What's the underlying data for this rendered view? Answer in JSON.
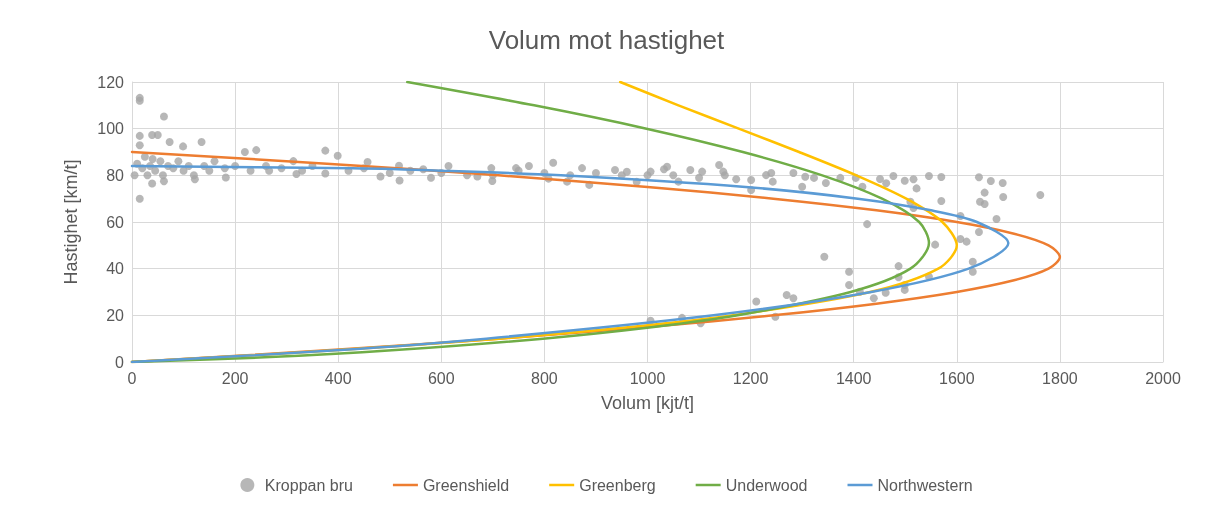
{
  "chart_data": {
    "type": "scatter",
    "title": "Volum mot hastighet",
    "xlabel": "Volum [kjt/t]",
    "ylabel": "Hastighet [km/t]",
    "xlim": [
      0,
      2000
    ],
    "xticks": [
      0,
      200,
      400,
      600,
      800,
      1000,
      1200,
      1400,
      1600,
      1800,
      2000
    ],
    "ylim": [
      0,
      120
    ],
    "yticks": [
      0,
      20,
      40,
      60,
      80,
      100,
      120
    ],
    "grid": true,
    "legend": "bottom",
    "series": [
      {
        "name": "Kroppan bru",
        "marker": "circle",
        "color": "#a5a5a5",
        "x": [
          15,
          15,
          62,
          15,
          15,
          39,
          50,
          73,
          135,
          99,
          15,
          39,
          62,
          122,
          182,
          219,
          241,
          266,
          313,
          375,
          399,
          319,
          375,
          457,
          482,
          519,
          518,
          565,
          580,
          614,
          670,
          699,
          697,
          745,
          770,
          817,
          808,
          844,
          887,
          873,
          937,
          960,
          979,
          1032,
          5,
          10,
          20,
          25,
          30,
          35,
          40,
          45,
          55,
          60,
          70,
          80,
          90,
          100,
          110,
          120,
          140,
          150,
          160,
          180,
          200,
          230,
          260,
          290,
          330,
          350,
          420,
          450,
          500,
          540,
          600,
          650,
          700,
          750,
          800,
          850,
          900,
          950,
          1000,
          1050,
          1100,
          1150,
          1006,
          1038,
          1060,
          1083,
          1106,
          1139,
          1147,
          1172,
          1201,
          1201,
          1230,
          1240,
          1243,
          1283,
          1300,
          1306,
          1323,
          1346,
          1374,
          1404,
          1417,
          1451,
          1463,
          1477,
          1499,
          1516,
          1546,
          1522,
          1516,
          1510,
          1643,
          1666,
          1689,
          1690,
          1654,
          1645,
          1654,
          1677,
          1643,
          1762,
          1570,
          1570,
          1607,
          1607,
          1619,
          1631,
          1631,
          1558,
          1546,
          1487,
          1487,
          1499,
          1499,
          1462,
          1439,
          1426,
          1391,
          1391,
          1412,
          1343,
          1270,
          1283,
          1211,
          1248,
          1103,
          1067,
          1006
        ],
        "values": [
          113.2,
          112,
          105.2,
          70,
          96.9,
          97.3,
          97.3,
          94.3,
          94.3,
          92.4,
          92.9,
          76.5,
          77.5,
          78.3,
          79.1,
          90,
          90.8,
          82,
          86.1,
          90.6,
          88.4,
          80.6,
          80.8,
          85.7,
          79.5,
          77.8,
          84.1,
          82.6,
          79,
          84,
          79.5,
          77.6,
          83.1,
          83.1,
          84,
          85.4,
          78.6,
          77.3,
          75.9,
          83.1,
          82.3,
          81.5,
          77.2,
          82.6,
          80,
          85,
          83,
          88,
          80,
          84,
          87,
          82,
          86,
          80,
          84,
          83,
          86,
          82,
          84,
          80,
          84,
          82,
          86,
          83,
          84,
          82,
          84,
          83,
          82,
          84,
          82,
          83,
          81,
          82,
          81,
          80,
          80,
          82,
          81,
          80,
          81,
          80,
          80,
          80,
          79,
          80,
          81.6,
          83.7,
          77.3,
          82.3,
          81.6,
          84.4,
          81.6,
          78.3,
          78,
          73.7,
          80.1,
          81,
          77.3,
          81,
          75.1,
          79.4,
          78.9,
          76.7,
          78.9,
          78.9,
          75.1,
          78.4,
          76.6,
          79.7,
          77.7,
          78.3,
          79.7,
          74.4,
          66,
          68.7,
          79.2,
          77.6,
          76.7,
          70.7,
          72.6,
          68.7,
          67.7,
          61.3,
          55.7,
          71.6,
          79.3,
          69,
          62.6,
          52.7,
          51.6,
          43,
          38.7,
          50.3,
          36.6,
          41.1,
          36.3,
          30.9,
          33,
          29.7,
          27.3,
          59.1,
          38.7,
          33,
          30.1,
          45.1,
          28.7,
          27.3,
          25.9,
          19.4,
          16.6,
          18.9,
          17.7
        ]
      },
      {
        "name": "Greenshield",
        "type": "line",
        "marker": "none",
        "line_style": "solid",
        "color": "#ed7d31",
        "x": [
          0,
          378,
          711,
          1000,
          1244,
          1444,
          1600,
          1711,
          1778,
          1800,
          1778,
          1711,
          1600,
          1444,
          1244,
          1000,
          711,
          378,
          0
        ],
        "values": [
          0,
          5,
          10,
          15,
          20,
          25,
          30,
          35,
          40,
          45,
          50,
          55,
          60,
          65,
          70,
          75,
          80,
          85,
          90
        ]
      },
      {
        "name": "Greenberg",
        "type": "line",
        "marker": "none",
        "line_style": "solid",
        "color": "#ffc000",
        "x": [
          0,
          394,
          712,
          967,
          1166,
          1432,
          1564,
          1600,
          1572,
          1502,
          1405,
          1294,
          1177,
          1060,
          947
        ],
        "values": [
          0,
          5,
          10,
          15,
          20,
          30,
          40,
          50,
          60,
          70,
          80,
          90,
          100,
          110,
          120
        ]
      },
      {
        "name": "Underwood",
        "type": "line",
        "marker": "none",
        "line_style": "solid",
        "color": "#70ad47",
        "x": [
          0,
          257,
          504,
          797,
          1012,
          1175,
          1394,
          1510,
          1546,
          1527,
          1455,
          1339,
          1185,
          998,
          780,
          534
        ],
        "values": [
          0,
          2,
          5,
          10,
          15,
          20,
          30,
          40,
          51,
          60,
          70,
          80,
          90,
          100,
          110,
          120
        ]
      },
      {
        "name": "Northwestern",
        "type": "line",
        "marker": "none",
        "line_style": "solid",
        "color": "#5b9bd5",
        "x": [
          0,
          396,
          687,
          1128,
          1434,
          1623,
          1700,
          1639,
          1550,
          1408,
          1190,
          832,
          600,
          428,
          0
        ],
        "values": [
          0,
          5,
          10,
          20,
          30,
          40,
          51,
          60,
          65,
          70,
          75,
          80,
          82,
          83,
          84
        ]
      }
    ]
  }
}
